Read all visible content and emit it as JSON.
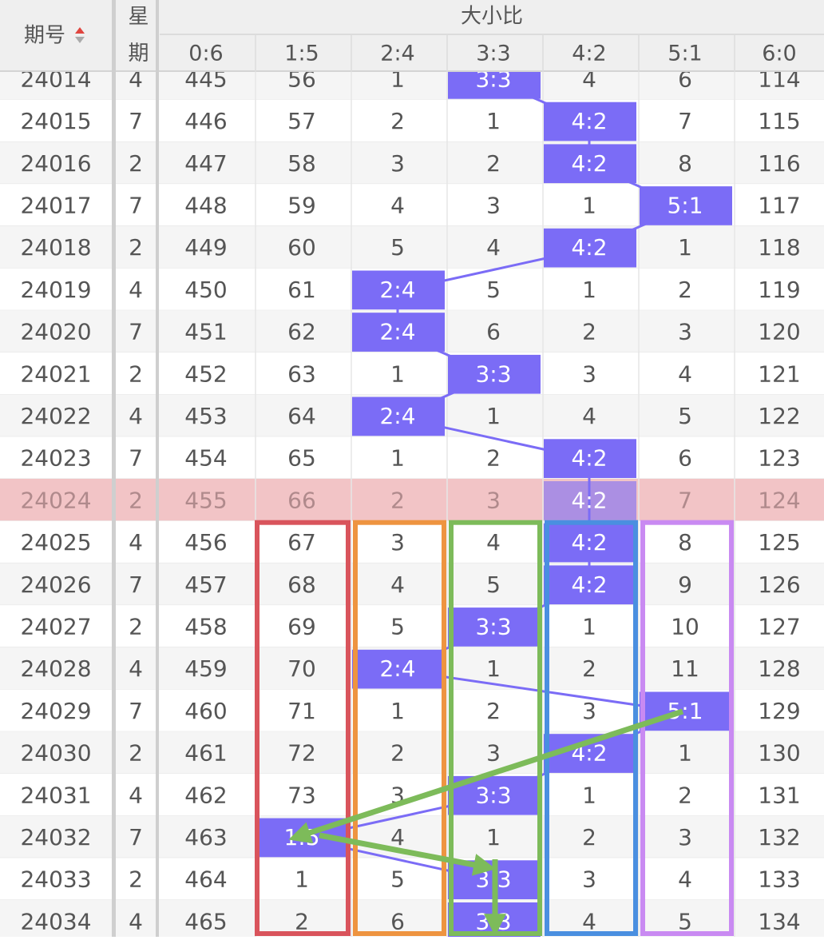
{
  "table": {
    "header": {
      "issue": "期号",
      "weekday": "星期",
      "group": "大小比",
      "columns": [
        "0:6",
        "1:5",
        "2:4",
        "3:3",
        "4:2",
        "5:1",
        "6:0"
      ]
    },
    "rows": [
      [
        "24014",
        "4",
        "445",
        "56",
        "1",
        "3:3",
        "4",
        "6",
        "114"
      ],
      [
        "24015",
        "7",
        "446",
        "57",
        "2",
        "1",
        "4:2",
        "7",
        "115"
      ],
      [
        "24016",
        "2",
        "447",
        "58",
        "3",
        "2",
        "4:2",
        "8",
        "116"
      ],
      [
        "24017",
        "7",
        "448",
        "59",
        "4",
        "3",
        "1",
        "5:1",
        "117"
      ],
      [
        "24018",
        "2",
        "449",
        "60",
        "5",
        "4",
        "4:2",
        "1",
        "118"
      ],
      [
        "24019",
        "4",
        "450",
        "61",
        "2:4",
        "5",
        "1",
        "2",
        "119"
      ],
      [
        "24020",
        "7",
        "451",
        "62",
        "2:4",
        "6",
        "2",
        "3",
        "120"
      ],
      [
        "24021",
        "2",
        "452",
        "63",
        "1",
        "3:3",
        "3",
        "4",
        "121"
      ],
      [
        "24022",
        "4",
        "453",
        "64",
        "2:4",
        "1",
        "4",
        "5",
        "122"
      ],
      [
        "24023",
        "7",
        "454",
        "65",
        "1",
        "2",
        "4:2",
        "6",
        "123"
      ],
      [
        "24024",
        "2",
        "455",
        "66",
        "2",
        "3",
        "4:2",
        "7",
        "124"
      ],
      [
        "24025",
        "4",
        "456",
        "67",
        "3",
        "4",
        "4:2",
        "8",
        "125"
      ],
      [
        "24026",
        "7",
        "457",
        "68",
        "4",
        "5",
        "4:2",
        "9",
        "126"
      ],
      [
        "24027",
        "2",
        "458",
        "69",
        "5",
        "3:3",
        "1",
        "10",
        "127"
      ],
      [
        "24028",
        "4",
        "459",
        "70",
        "2:4",
        "1",
        "2",
        "11",
        "128"
      ],
      [
        "24029",
        "7",
        "460",
        "71",
        "1",
        "2",
        "3",
        "5:1",
        "129"
      ],
      [
        "24030",
        "2",
        "461",
        "72",
        "2",
        "3",
        "4:2",
        "1",
        "130"
      ],
      [
        "24031",
        "4",
        "462",
        "73",
        "3",
        "3:3",
        "1",
        "2",
        "131"
      ],
      [
        "24032",
        "7",
        "463",
        "1:5",
        "4",
        "1",
        "2",
        "3",
        "132"
      ],
      [
        "24033",
        "2",
        "464",
        "1",
        "5",
        "3:3",
        "3",
        "4",
        "133"
      ],
      [
        "24034",
        "4",
        "465",
        "2",
        "6",
        "3:3",
        "4",
        "5",
        "134"
      ]
    ]
  }
}
